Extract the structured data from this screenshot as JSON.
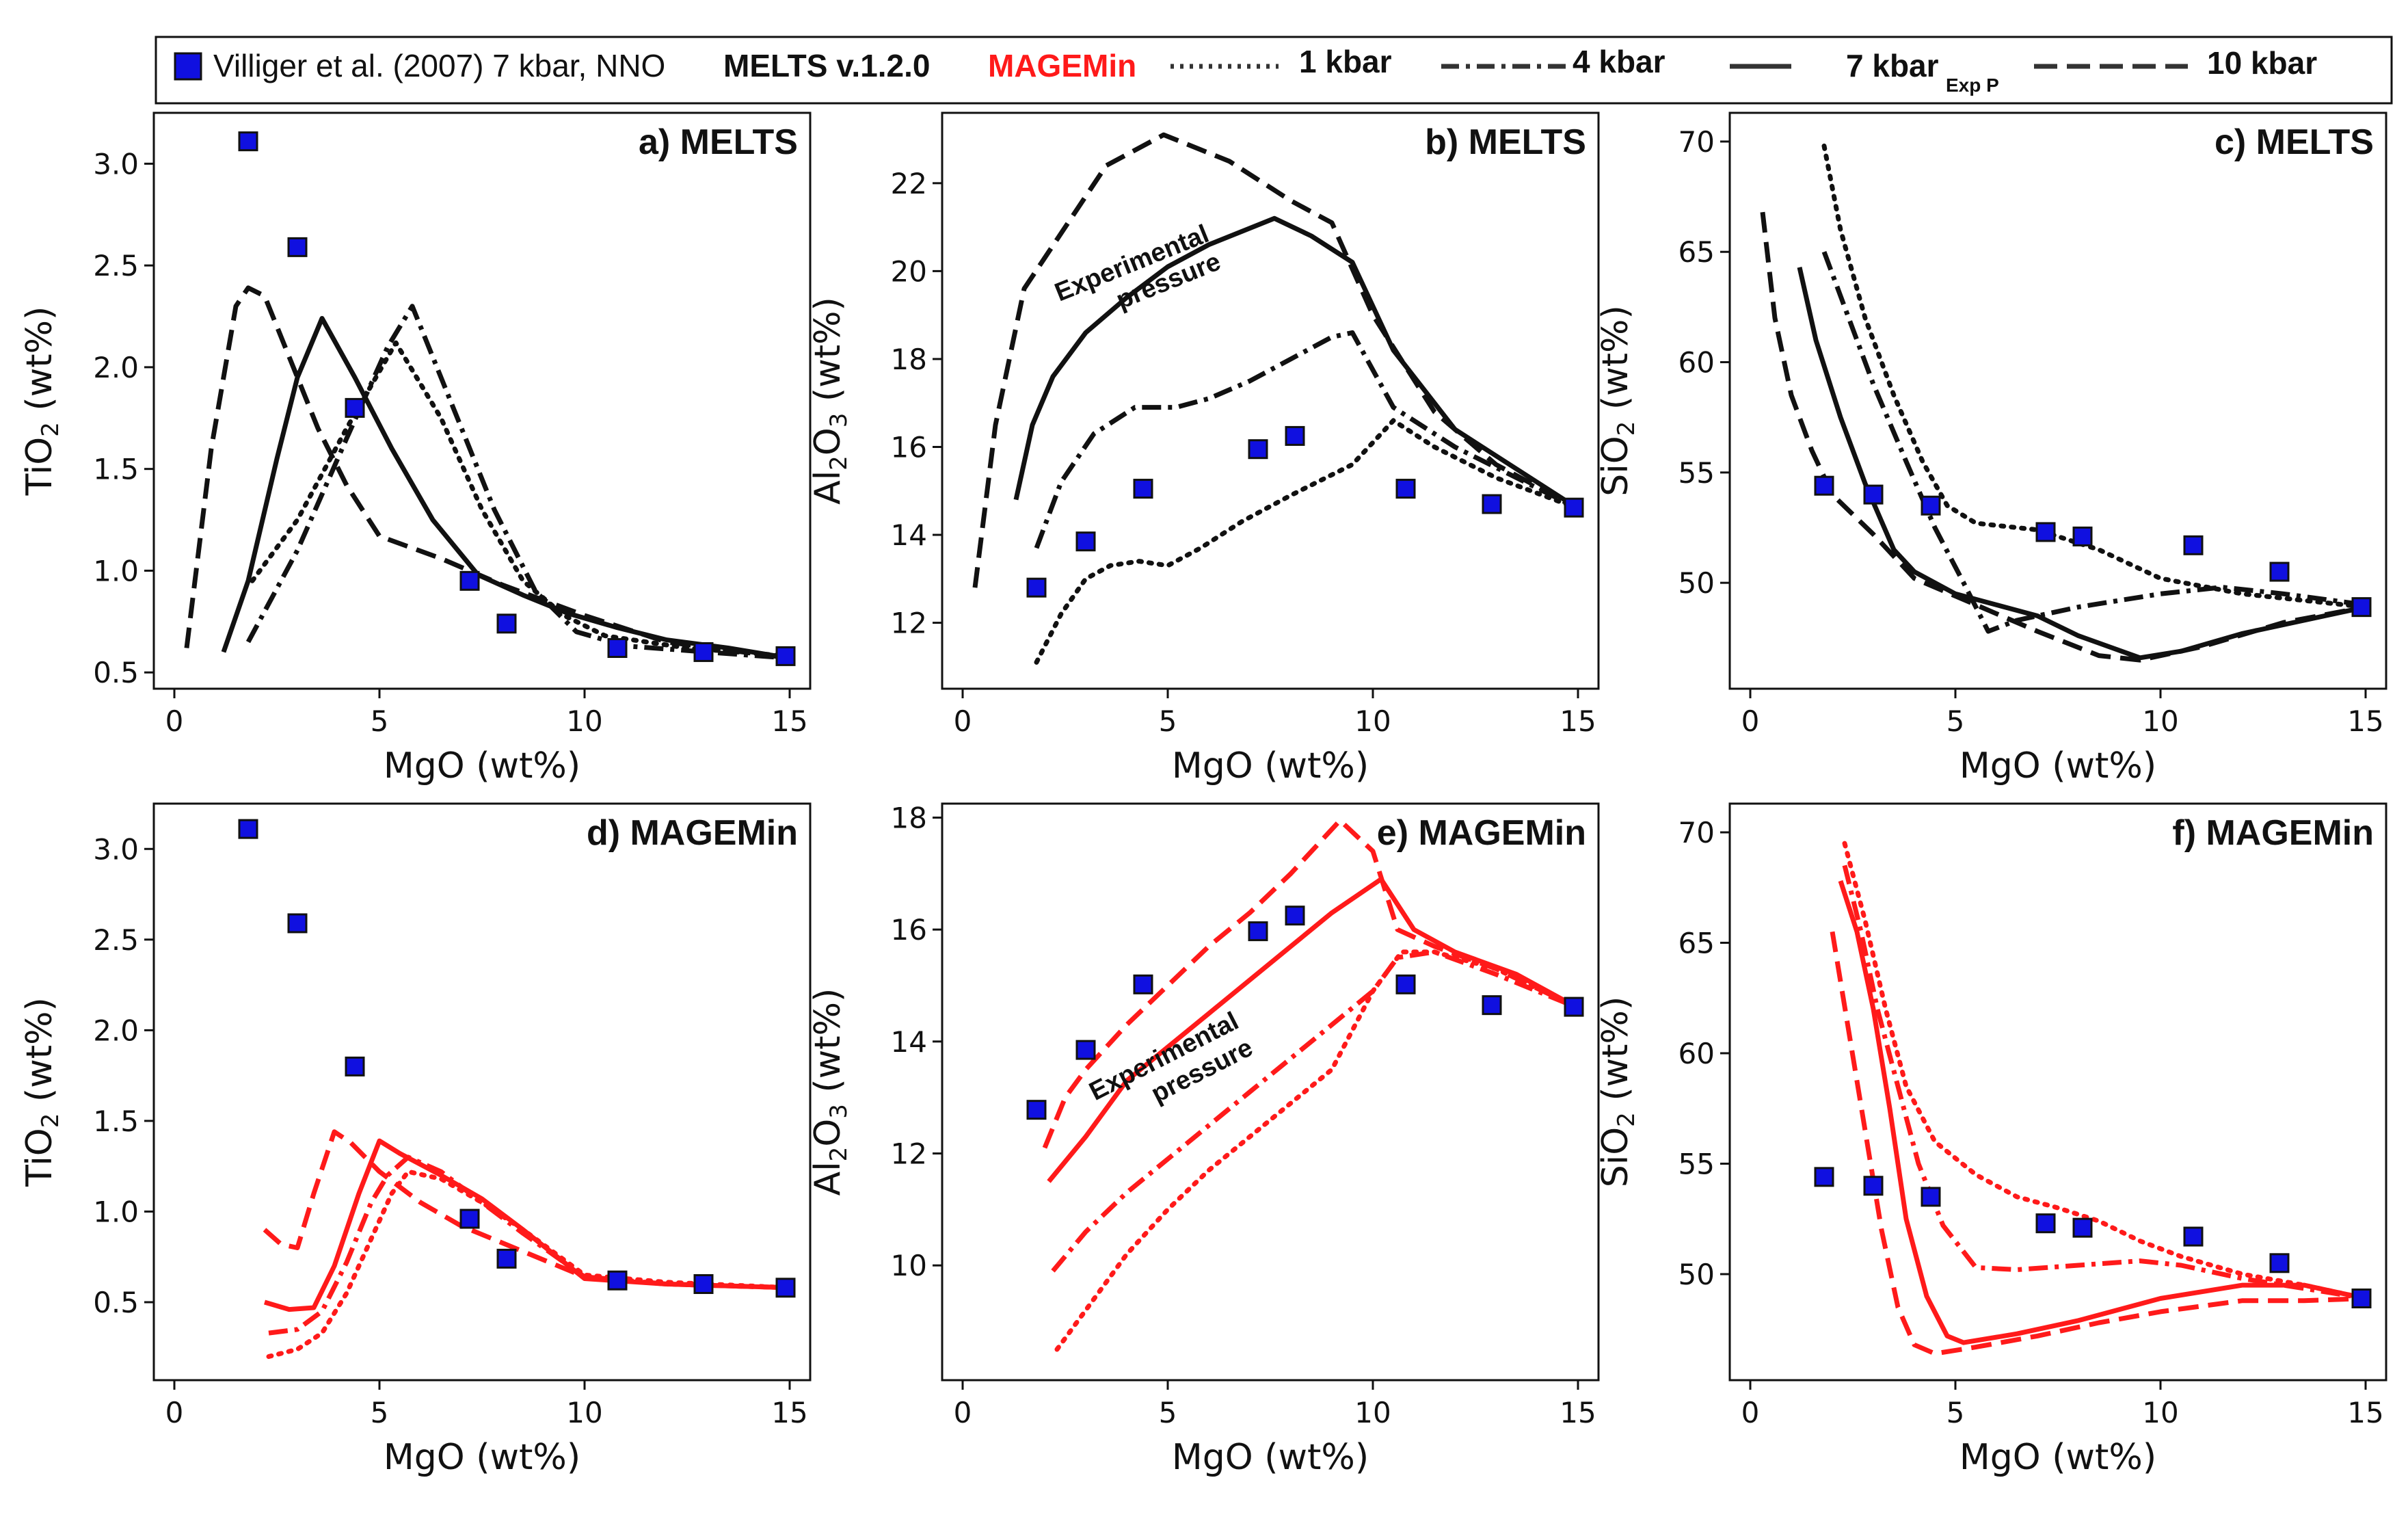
{
  "legend": {
    "observed_label": "Villiger et al. (2007) 7 kbar, NNO",
    "melts_label": "MELTS v.1.2.0",
    "magemin_label": "MAGEMin",
    "p1_label": "1 kbar",
    "p4_label": "4 kbar",
    "p7_label": "7 kbar",
    "p7_sub": "Exp P",
    "p10_label": "10 kbar"
  },
  "colors": {
    "melts": "#111111",
    "magemin": "#ff1a1a",
    "marker": "#1010e0"
  },
  "chart_data": [
    {
      "type": "line",
      "title": "a) MELTS",
      "xlabel": "MgO (wt%)",
      "ylabel_main": "TiO",
      "ylabel_sub": "2",
      "ylabel_end": " (wt%)",
      "xlim": [
        -0.5,
        15.5
      ],
      "ylim": [
        0.42,
        3.25
      ],
      "xticks": [
        0,
        5,
        10,
        15
      ],
      "yticks": [
        0.5,
        1.0,
        1.5,
        2.0,
        2.5,
        3.0
      ],
      "ytick_dec": 1,
      "color": "#111111",
      "observed": {
        "x": [
          1.8,
          3.0,
          4.4,
          7.2,
          8.1,
          10.8,
          12.9,
          14.9
        ],
        "y": [
          3.11,
          2.59,
          1.8,
          0.95,
          0.74,
          0.62,
          0.6,
          0.58
        ]
      },
      "series": [
        {
          "pressure": "1 kbar",
          "x": [
            1.9,
            3.0,
            4.2,
            5.4,
            6.5,
            7.5,
            8.5,
            9.5,
            10.5,
            12.5,
            15.0
          ],
          "y": [
            0.95,
            1.25,
            1.7,
            2.12,
            1.75,
            1.3,
            0.95,
            0.78,
            0.68,
            0.62,
            0.58
          ]
        },
        {
          "pressure": "4 kbar",
          "x": [
            1.8,
            3.0,
            4.2,
            5.2,
            5.8,
            6.8,
            7.8,
            8.8,
            9.8,
            11.0,
            15.0
          ],
          "y": [
            0.65,
            1.1,
            1.65,
            2.1,
            2.3,
            1.8,
            1.3,
            0.9,
            0.7,
            0.63,
            0.57
          ]
        },
        {
          "pressure": "7 kbar",
          "x": [
            1.2,
            1.8,
            2.5,
            3.0,
            3.6,
            4.4,
            5.3,
            6.3,
            7.4,
            8.5,
            9.6,
            10.8,
            12.0,
            13.5,
            15.0
          ],
          "y": [
            0.6,
            0.95,
            1.55,
            1.95,
            2.24,
            1.95,
            1.6,
            1.25,
            0.98,
            0.88,
            0.79,
            0.72,
            0.66,
            0.62,
            0.57
          ]
        },
        {
          "pressure": "10 kbar",
          "x": [
            0.3,
            0.9,
            1.5,
            1.8,
            2.2,
            2.8,
            3.5,
            4.2,
            5.0,
            6.5,
            8.0,
            10.0,
            12.0,
            15.0
          ],
          "y": [
            0.62,
            1.6,
            2.3,
            2.39,
            2.35,
            2.05,
            1.7,
            1.42,
            1.17,
            1.06,
            0.93,
            0.78,
            0.65,
            0.57
          ]
        }
      ]
    },
    {
      "type": "line",
      "title": "b) MELTS",
      "xlabel": "MgO (wt%)",
      "ylabel_main": "Al",
      "ylabel_sub": "2",
      "ylabel_mid": "O",
      "ylabel_sub2": "3",
      "ylabel_end": " (wt%)",
      "xlim": [
        -0.5,
        15.5
      ],
      "ylim": [
        10.5,
        23.6
      ],
      "xticks": [
        0,
        5,
        10,
        15
      ],
      "yticks": [
        12,
        14,
        16,
        18,
        20,
        22
      ],
      "ytick_dec": 0,
      "color": "#111111",
      "annotation": [
        "Experimental",
        "pressure"
      ],
      "observed": {
        "x": [
          1.8,
          3.0,
          4.4,
          7.2,
          8.1,
          10.8,
          12.9,
          14.9
        ],
        "y": [
          12.8,
          13.85,
          15.05,
          15.95,
          16.25,
          15.05,
          14.7,
          14.62
        ]
      },
      "series": [
        {
          "pressure": "1 kbar",
          "x": [
            1.8,
            2.4,
            3.0,
            3.6,
            4.3,
            5.0,
            5.8,
            6.8,
            8.0,
            9.5,
            10.5,
            11.5,
            13.0,
            15.0
          ],
          "y": [
            11.1,
            12.2,
            13.0,
            13.3,
            13.4,
            13.3,
            13.7,
            14.3,
            14.9,
            15.6,
            16.6,
            16.0,
            15.3,
            14.6
          ]
        },
        {
          "pressure": "4 kbar",
          "x": [
            1.8,
            2.4,
            3.2,
            4.2,
            5.2,
            6.0,
            7.0,
            8.0,
            9.0,
            9.5,
            10.5,
            12.0,
            15.0
          ],
          "y": [
            13.7,
            15.2,
            16.3,
            16.9,
            16.9,
            17.1,
            17.5,
            18.0,
            18.5,
            18.6,
            16.9,
            16.0,
            14.6
          ]
        },
        {
          "pressure": "7 kbar",
          "x": [
            1.3,
            1.7,
            2.2,
            3.0,
            4.0,
            5.0,
            6.0,
            7.6,
            8.5,
            9.5,
            10.5,
            12.0,
            15.0
          ],
          "y": [
            14.8,
            16.5,
            17.6,
            18.6,
            19.4,
            20.1,
            20.6,
            21.2,
            20.8,
            20.2,
            18.2,
            16.4,
            14.6
          ]
        },
        {
          "pressure": "10 kbar",
          "x": [
            0.3,
            0.8,
            1.5,
            2.5,
            3.5,
            4.9,
            6.5,
            8.0,
            9.0,
            10.0,
            11.5,
            13.0,
            15.0
          ],
          "y": [
            12.8,
            16.5,
            19.6,
            21.0,
            22.4,
            23.1,
            22.5,
            21.6,
            21.1,
            19.0,
            16.8,
            15.6,
            14.6
          ]
        }
      ]
    },
    {
      "type": "line",
      "title": "c) MELTS",
      "xlabel": "MgO (wt%)",
      "ylabel_main": "SiO",
      "ylabel_sub": "2",
      "ylabel_end": " (wt%)",
      "xlim": [
        -0.5,
        15.5
      ],
      "ylim": [
        45.2,
        71.3
      ],
      "xticks": [
        0,
        5,
        10,
        15
      ],
      "yticks": [
        50,
        55,
        60,
        65,
        70
      ],
      "ytick_dec": 0,
      "color": "#111111",
      "observed": {
        "x": [
          1.8,
          3.0,
          4.4,
          7.2,
          8.1,
          10.8,
          12.9,
          14.9
        ],
        "y": [
          54.4,
          54.0,
          53.5,
          52.3,
          52.1,
          51.7,
          50.5,
          48.9
        ]
      },
      "series": [
        {
          "pressure": "1 kbar",
          "x": [
            1.8,
            2.2,
            2.8,
            3.5,
            4.2,
            4.8,
            5.5,
            7.0,
            8.5,
            10.0,
            12.0,
            15.0
          ],
          "y": [
            69.8,
            66.0,
            62.0,
            58.5,
            55.5,
            53.5,
            52.7,
            52.4,
            51.5,
            50.2,
            49.5,
            48.9
          ]
        },
        {
          "pressure": "4 kbar",
          "x": [
            1.8,
            2.4,
            3.0,
            3.8,
            4.5,
            5.2,
            5.8,
            6.5,
            8.0,
            10.0,
            11.5,
            13.0,
            15.0
          ],
          "y": [
            65.0,
            62.0,
            59.0,
            55.5,
            52.5,
            50.0,
            47.8,
            48.3,
            48.9,
            49.5,
            49.8,
            49.5,
            49.0
          ]
        },
        {
          "pressure": "7 kbar",
          "x": [
            1.2,
            1.6,
            2.2,
            2.8,
            3.5,
            4.0,
            5.0,
            6.0,
            7.0,
            8.0,
            9.5,
            10.5,
            12.0,
            15.0
          ],
          "y": [
            64.3,
            61.0,
            57.5,
            54.5,
            51.5,
            50.5,
            49.5,
            49.0,
            48.5,
            47.6,
            46.6,
            46.9,
            47.7,
            48.9
          ]
        },
        {
          "pressure": "10 kbar",
          "x": [
            0.3,
            0.6,
            1.0,
            1.5,
            2.0,
            3.0,
            4.0,
            5.5,
            7.0,
            8.5,
            9.5,
            11.0,
            13.0,
            15.0
          ],
          "y": [
            66.8,
            62.0,
            58.5,
            56.0,
            54.0,
            52.2,
            50.2,
            49.0,
            47.8,
            46.7,
            46.5,
            47.1,
            48.2,
            48.9
          ]
        }
      ]
    },
    {
      "type": "line",
      "title": "d) MAGEMin",
      "xlabel": "MgO (wt%)",
      "ylabel_main": "TiO",
      "ylabel_sub": "2",
      "ylabel_end": " (wt%)",
      "xlim": [
        -0.5,
        15.5
      ],
      "ylim": [
        0.07,
        3.25
      ],
      "xticks": [
        0,
        5,
        10,
        15
      ],
      "yticks": [
        0.5,
        1.0,
        1.5,
        2.0,
        2.5,
        3.0
      ],
      "ytick_dec": 1,
      "color": "#ff1a1a",
      "observed": {
        "x": [
          1.8,
          3.0,
          4.4,
          7.2,
          8.1,
          10.8,
          12.9,
          14.9
        ],
        "y": [
          3.11,
          2.59,
          1.8,
          0.96,
          0.74,
          0.62,
          0.6,
          0.58
        ]
      },
      "series": [
        {
          "pressure": "1 kbar",
          "x": [
            2.3,
            3.0,
            3.6,
            4.2,
            4.8,
            5.3,
            5.7,
            6.5,
            7.5,
            8.5,
            10.0,
            12.0,
            15.0
          ],
          "y": [
            0.2,
            0.24,
            0.33,
            0.55,
            0.85,
            1.1,
            1.22,
            1.18,
            1.05,
            0.9,
            0.65,
            0.61,
            0.58
          ]
        },
        {
          "pressure": "4 kbar",
          "x": [
            2.3,
            3.0,
            3.6,
            4.2,
            4.8,
            5.2,
            5.7,
            6.5,
            7.5,
            8.5,
            10.0,
            12.0,
            15.0
          ],
          "y": [
            0.33,
            0.35,
            0.45,
            0.72,
            1.05,
            1.2,
            1.3,
            1.22,
            1.05,
            0.88,
            0.64,
            0.6,
            0.58
          ]
        },
        {
          "pressure": "7 kbar",
          "x": [
            2.2,
            2.8,
            3.4,
            3.9,
            4.5,
            5.0,
            5.5,
            6.5,
            7.5,
            8.5,
            10.0,
            12.0,
            15.0
          ],
          "y": [
            0.5,
            0.46,
            0.47,
            0.7,
            1.1,
            1.39,
            1.32,
            1.2,
            1.07,
            0.9,
            0.63,
            0.6,
            0.58
          ]
        },
        {
          "pressure": "10 kbar",
          "x": [
            2.2,
            2.6,
            3.0,
            3.4,
            3.9,
            4.3,
            5.0,
            6.0,
            7.0,
            8.5,
            10.0,
            12.0,
            15.0
          ],
          "y": [
            0.9,
            0.82,
            0.8,
            1.1,
            1.44,
            1.38,
            1.22,
            1.05,
            0.92,
            0.78,
            0.64,
            0.6,
            0.58
          ]
        }
      ]
    },
    {
      "type": "line",
      "title": "e) MAGEMin",
      "xlabel": "MgO (wt%)",
      "ylabel_main": "Al",
      "ylabel_sub": "2",
      "ylabel_mid": "O",
      "ylabel_sub2": "3",
      "ylabel_end": " (wt%)",
      "xlim": [
        -0.5,
        15.5
      ],
      "ylim": [
        7.95,
        18.25
      ],
      "xticks": [
        0,
        5,
        10,
        15
      ],
      "yticks": [
        10,
        12,
        14,
        16,
        18
      ],
      "ytick_dec": 0,
      "color": "#ff1a1a",
      "annotation": [
        "Experimental",
        "pressure"
      ],
      "observed": {
        "x": [
          1.8,
          3.0,
          4.4,
          7.2,
          8.1,
          10.8,
          12.9,
          14.9
        ],
        "y": [
          12.78,
          13.85,
          15.02,
          15.97,
          16.25,
          15.02,
          14.65,
          14.62
        ]
      },
      "series": [
        {
          "pressure": "1 kbar",
          "x": [
            2.3,
            3.0,
            4.0,
            5.0,
            6.0,
            7.0,
            8.0,
            9.0,
            9.5,
            10.0,
            10.7,
            11.5,
            13.0,
            15.0
          ],
          "y": [
            8.5,
            9.2,
            10.2,
            11.0,
            11.7,
            12.3,
            12.9,
            13.5,
            14.2,
            14.9,
            15.6,
            15.6,
            15.3,
            14.6
          ]
        },
        {
          "pressure": "4 kbar",
          "x": [
            2.2,
            3.0,
            4.0,
            5.0,
            6.0,
            7.0,
            8.0,
            9.0,
            10.0,
            10.6,
            11.5,
            13.0,
            15.0
          ],
          "y": [
            9.9,
            10.6,
            11.3,
            11.9,
            12.5,
            13.1,
            13.7,
            14.3,
            14.9,
            15.5,
            15.6,
            15.2,
            14.6
          ]
        },
        {
          "pressure": "7 kbar",
          "x": [
            2.1,
            3.0,
            4.0,
            5.0,
            6.0,
            7.0,
            8.0,
            9.0,
            10.2,
            11.0,
            12.0,
            13.5,
            15.0
          ],
          "y": [
            11.5,
            12.3,
            13.3,
            13.9,
            14.5,
            15.1,
            15.7,
            16.3,
            16.9,
            16.0,
            15.6,
            15.2,
            14.6
          ]
        },
        {
          "pressure": "10 kbar",
          "x": [
            2.0,
            2.5,
            3.0,
            4.0,
            5.0,
            6.0,
            7.0,
            8.0,
            9.2,
            10.0,
            10.6,
            11.5,
            13.0,
            15.0
          ],
          "y": [
            12.1,
            13.0,
            13.5,
            14.3,
            15.0,
            15.7,
            16.3,
            17.0,
            17.95,
            17.4,
            16.0,
            15.7,
            15.3,
            14.6
          ]
        }
      ]
    },
    {
      "type": "line",
      "title": "f) MAGEMin",
      "xlabel": "MgO (wt%)",
      "ylabel_main": "SiO",
      "ylabel_sub": "2",
      "ylabel_end": " (wt%)",
      "xlim": [
        -0.5,
        15.5
      ],
      "ylim": [
        45.2,
        71.3
      ],
      "xticks": [
        0,
        5,
        10,
        15
      ],
      "yticks": [
        50,
        55,
        60,
        65,
        70
      ],
      "ytick_dec": 0,
      "color": "#ff1a1a",
      "observed": {
        "x": [
          1.8,
          3.0,
          4.4,
          7.2,
          8.1,
          10.8,
          12.9,
          14.9
        ],
        "y": [
          54.4,
          54.0,
          53.5,
          52.3,
          52.1,
          51.7,
          50.5,
          48.9
        ]
      },
      "series": [
        {
          "pressure": "1 kbar",
          "x": [
            2.3,
            2.8,
            3.3,
            3.8,
            4.5,
            5.5,
            6.5,
            7.5,
            8.5,
            9.5,
            10.5,
            12.0,
            13.5,
            15.0
          ],
          "y": [
            69.5,
            66.0,
            62.0,
            58.5,
            56.0,
            54.5,
            53.5,
            53.0,
            52.4,
            51.5,
            50.8,
            50.0,
            49.5,
            48.9
          ]
        },
        {
          "pressure": "4 kbar",
          "x": [
            2.3,
            2.7,
            3.1,
            3.6,
            4.1,
            4.7,
            5.5,
            6.5,
            8.0,
            9.5,
            10.5,
            12.0,
            15.0
          ],
          "y": [
            68.5,
            65.5,
            62.0,
            58.5,
            55.0,
            52.2,
            50.3,
            50.2,
            50.4,
            50.6,
            50.4,
            49.8,
            48.9
          ]
        },
        {
          "pressure": "7 kbar",
          "x": [
            2.2,
            2.6,
            3.0,
            3.4,
            3.8,
            4.3,
            4.8,
            5.2,
            6.5,
            8.0,
            10.0,
            12.0,
            13.5,
            15.0
          ],
          "y": [
            67.8,
            65.5,
            62.0,
            57.5,
            52.5,
            49.0,
            47.2,
            46.9,
            47.3,
            47.9,
            48.9,
            49.5,
            49.5,
            48.9
          ]
        },
        {
          "pressure": "10 kbar",
          "x": [
            2.0,
            2.4,
            2.8,
            3.2,
            3.6,
            4.0,
            4.5,
            5.5,
            7.0,
            8.5,
            10.0,
            12.0,
            13.5,
            15.0
          ],
          "y": [
            65.5,
            61.0,
            56.5,
            52.0,
            48.5,
            46.8,
            46.4,
            46.7,
            47.2,
            47.8,
            48.3,
            48.8,
            48.8,
            48.9
          ]
        }
      ]
    }
  ]
}
